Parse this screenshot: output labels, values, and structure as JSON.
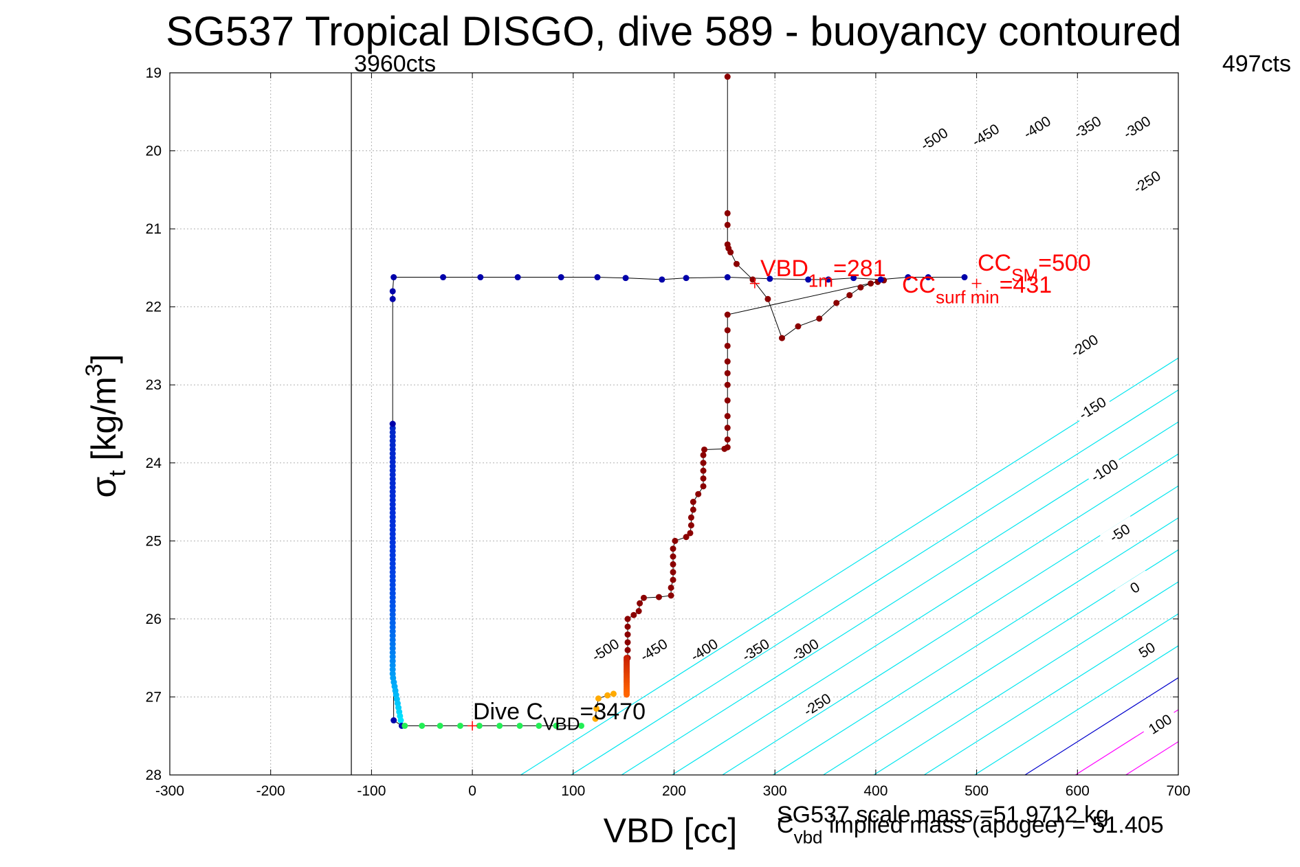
{
  "chart_data": {
    "type": "scatter",
    "title": "SG537 Tropical DISGO, dive 589 - buoyancy contoured",
    "xlabel": "VBD [cc]",
    "ylabel": "σ_t [kg/m^3]",
    "xlim": [
      -300,
      700
    ],
    "ylim": [
      28,
      19
    ],
    "y_reversed": true,
    "grid": true,
    "xticks": [
      "-300",
      "-200",
      "-100",
      "0",
      "100",
      "200",
      "300",
      "400",
      "500",
      "600",
      "700"
    ],
    "yticks": [
      "19",
      "20",
      "21",
      "22",
      "23",
      "24",
      "25",
      "26",
      "27",
      "28"
    ],
    "counts_line": {
      "x": -120,
      "left_label": "3960cts",
      "right_label": "497cts"
    },
    "contours": {
      "slope_per_kgm3": 122,
      "levels": [
        -500,
        -450,
        -400,
        -350,
        -300,
        -250,
        -200,
        -150,
        -100,
        -50,
        0,
        50,
        100
      ],
      "labels": [
        "-500",
        "-450",
        "-400",
        "-350",
        "-300",
        "-250",
        "-200",
        "-150",
        "-100",
        "-50",
        "0",
        "50",
        "100"
      ],
      "colors": {
        "negative": "#00e5ee",
        "zero": "#0000cc",
        "positive": "#ff00ff"
      },
      "upper_labels": [
        {
          "level": -500,
          "text": "-500",
          "x": 458,
          "y": 19.85
        },
        {
          "level": -450,
          "text": "-450",
          "x": 509,
          "y": 19.8
        },
        {
          "level": -400,
          "text": "-400",
          "x": 560,
          "y": 19.7
        },
        {
          "level": -350,
          "text": "-350",
          "x": 610,
          "y": 19.7
        },
        {
          "level": -300,
          "text": "-300",
          "x": 659,
          "y": 19.7
        },
        {
          "level": -250,
          "text": "-250",
          "x": 669,
          "y": 20.4
        },
        {
          "level": -200,
          "text": "-200",
          "x": 607,
          "y": 22.5
        },
        {
          "level": -150,
          "text": "-150",
          "x": 615,
          "y": 23.3
        },
        {
          "level": -100,
          "text": "-100",
          "x": 627,
          "y": 24.1
        },
        {
          "level": -50,
          "text": "-50",
          "x": 642,
          "y": 24.9
        },
        {
          "level": 0,
          "text": "0",
          "x": 657,
          "y": 25.6
        },
        {
          "level": 50,
          "text": "50",
          "x": 669,
          "y": 26.4
        },
        {
          "level": 100,
          "text": "100",
          "x": 682,
          "y": 27.35
        }
      ],
      "lower_labels": [
        {
          "level": -500,
          "text": "-500",
          "x": 132,
          "y": 26.4
        },
        {
          "level": -450,
          "text": "-450",
          "x": 180,
          "y": 26.4
        },
        {
          "level": -400,
          "text": "-400",
          "x": 230,
          "y": 26.4
        },
        {
          "level": -350,
          "text": "-350",
          "x": 281,
          "y": 26.4
        },
        {
          "level": -300,
          "text": "-300",
          "x": 330,
          "y": 26.4
        },
        {
          "level": -250,
          "text": "-250",
          "x": 342,
          "y": 27.1
        }
      ]
    },
    "series": [
      {
        "role": "ascent",
        "color": "#8b0000",
        "points": [
          [
            253,
            19.05
          ],
          [
            253,
            20.8
          ],
          [
            253,
            20.95
          ],
          [
            253,
            21.2
          ],
          [
            254,
            21.25
          ],
          [
            256,
            21.3
          ],
          [
            262,
            21.45
          ],
          [
            278,
            21.65
          ],
          [
            293,
            21.9
          ],
          [
            307,
            22.4
          ],
          [
            323,
            22.25
          ],
          [
            344,
            22.15
          ],
          [
            361,
            21.95
          ],
          [
            374,
            21.85
          ],
          [
            385,
            21.75
          ],
          [
            395,
            21.7
          ],
          [
            402,
            21.68
          ],
          [
            408,
            21.66
          ],
          [
            253,
            22.1
          ],
          [
            253,
            22.3
          ],
          [
            253,
            22.5
          ],
          [
            253,
            22.7
          ],
          [
            253,
            22.85
          ],
          [
            253,
            23.0
          ],
          [
            253,
            23.2
          ],
          [
            253,
            23.4
          ],
          [
            253,
            23.55
          ],
          [
            253,
            23.7
          ],
          [
            253,
            23.8
          ],
          [
            250,
            23.82
          ],
          [
            230,
            23.83
          ],
          [
            229,
            23.9
          ],
          [
            229,
            24.0
          ],
          [
            229,
            24.1
          ],
          [
            229,
            24.2
          ],
          [
            229,
            24.3
          ],
          [
            224,
            24.4
          ],
          [
            219,
            24.5
          ],
          [
            219,
            24.6
          ],
          [
            217,
            24.7
          ],
          [
            217,
            24.8
          ],
          [
            216,
            24.9
          ],
          [
            212,
            24.95
          ],
          [
            201,
            25.0
          ],
          [
            199,
            25.1
          ],
          [
            199,
            25.2
          ],
          [
            199,
            25.3
          ],
          [
            199,
            25.4
          ],
          [
            199,
            25.5
          ],
          [
            197,
            25.6
          ],
          [
            197,
            25.7
          ],
          [
            185,
            25.72
          ],
          [
            170,
            25.73
          ],
          [
            166,
            25.8
          ],
          [
            165,
            25.9
          ],
          [
            160,
            25.95
          ],
          [
            154,
            26.0
          ],
          [
            154,
            26.1
          ],
          [
            154,
            26.2
          ],
          [
            154,
            26.3
          ],
          [
            154,
            26.4
          ],
          [
            154,
            26.5
          ]
        ]
      },
      {
        "role": "descent",
        "color": "#0000aa",
        "points": [
          [
            488,
            21.62
          ],
          [
            452,
            21.62
          ],
          [
            432,
            21.62
          ],
          [
            405,
            21.65
          ],
          [
            378,
            21.63
          ],
          [
            353,
            21.65
          ],
          [
            333,
            21.65
          ],
          [
            295,
            21.64
          ],
          [
            253,
            21.62
          ],
          [
            212,
            21.63
          ],
          [
            188,
            21.65
          ],
          [
            152,
            21.63
          ],
          [
            124,
            21.62
          ],
          [
            88,
            21.62
          ],
          [
            45,
            21.62
          ],
          [
            8,
            21.62
          ],
          [
            -29,
            21.62
          ],
          [
            -78,
            21.62
          ],
          [
            -79,
            21.8
          ],
          [
            -79,
            21.9
          ],
          [
            -79,
            23.5
          ],
          [
            -78,
            27.3
          ],
          [
            -70,
            27.37
          ]
        ]
      },
      {
        "role": "apogee",
        "color": "#22ee55",
        "points": [
          [
            -67,
            27.37
          ],
          [
            -50,
            27.37
          ],
          [
            -32,
            27.37
          ],
          [
            -12,
            27.37
          ],
          [
            7,
            27.37
          ],
          [
            27,
            27.37
          ],
          [
            47,
            27.37
          ],
          [
            66,
            27.37
          ],
          [
            83,
            27.37
          ],
          [
            108,
            27.37
          ]
        ]
      },
      {
        "role": "turn",
        "color": "#ffaa00",
        "points": [
          [
            122,
            27.28
          ],
          [
            123,
            27.15
          ],
          [
            125,
            27.02
          ],
          [
            134,
            26.98
          ],
          [
            140,
            26.96
          ]
        ]
      }
    ],
    "markers": [
      {
        "x": 280,
        "y": 21.7,
        "color": "#ff0000"
      },
      {
        "x": 500,
        "y": 21.7,
        "color": "#ff0000"
      },
      {
        "x": 0,
        "y": 27.37,
        "color": "#ff0000"
      }
    ],
    "annotations": {
      "vbd_1m": {
        "text": "VBD",
        "sub": "1m",
        "value": "=281",
        "color": "#ff0000"
      },
      "cc_sm": {
        "text": "CC",
        "sub": "SM",
        "value": "=500",
        "color": "#ff0000"
      },
      "cc_surf": {
        "text": "CC",
        "sub": "surf min",
        "value": "=431",
        "color": "#ff0000"
      },
      "dive_c": {
        "text": "Dive C",
        "sub": "VBD",
        "value": "=3470",
        "color": "#000000"
      },
      "scale_mass": {
        "text": "SG537 scale mass =51.9712 kg"
      },
      "implied_mass": {
        "text": "C",
        "sub": "vbd",
        "value": " implied mass (apogee) = 51.405"
      }
    }
  }
}
